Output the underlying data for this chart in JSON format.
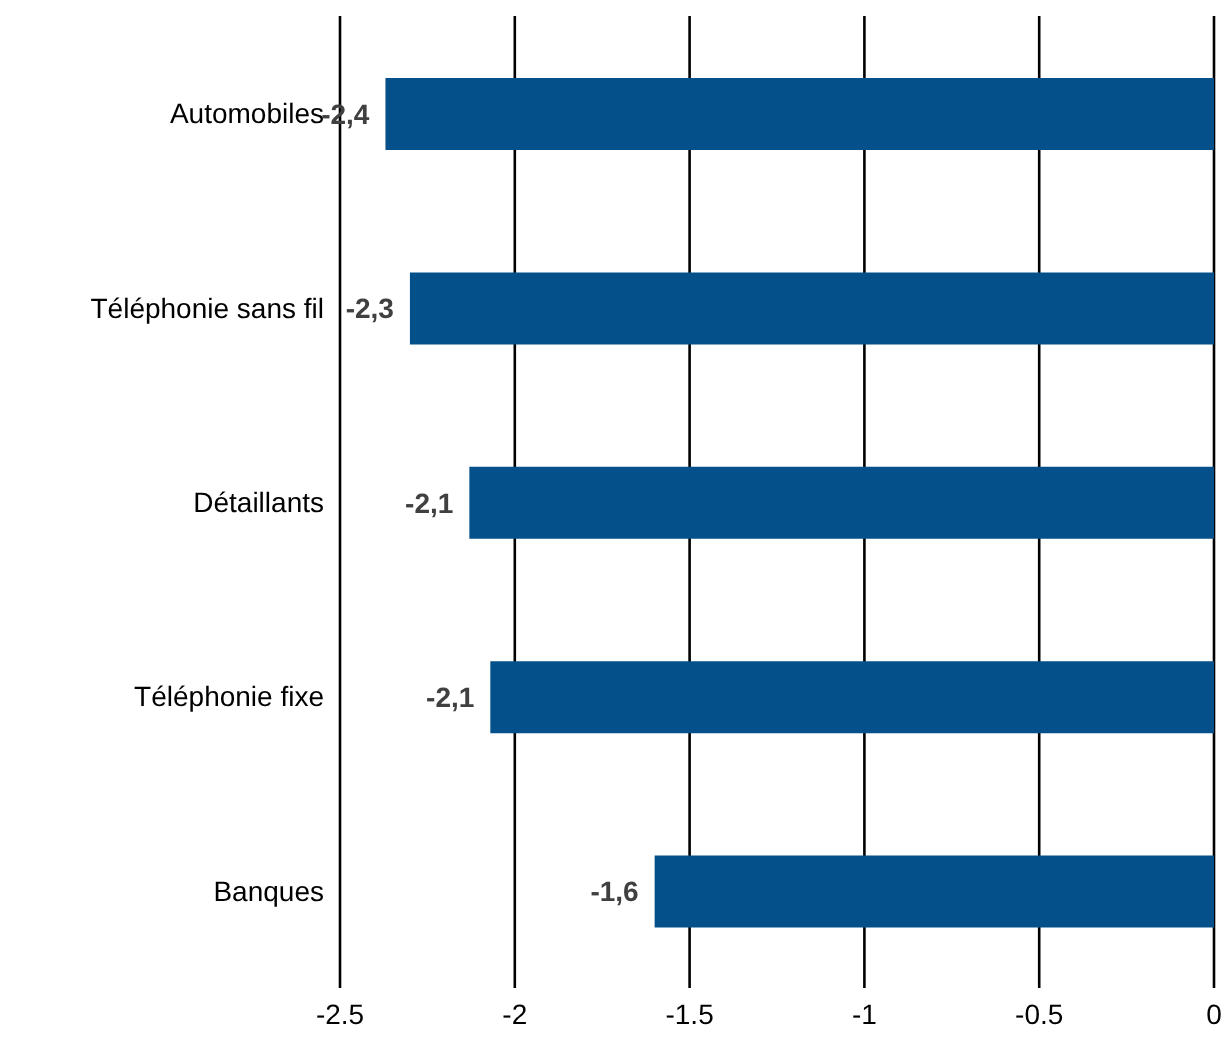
{
  "chart_data": {
    "type": "bar",
    "orientation": "horizontal",
    "categories": [
      "Automobiles",
      "Téléphonie sans fil",
      "Détaillants",
      "Téléphonie fixe",
      "Banques"
    ],
    "values": [
      -2.37,
      -2.3,
      -2.13,
      -2.07,
      -1.6
    ],
    "value_labels": [
      "-2,4",
      "-2,3",
      "-2,1",
      "-2,1",
      "-1,6"
    ],
    "color": "#03508a",
    "xlim": [
      -2.5,
      0
    ],
    "xticks": [
      -2.5,
      -2,
      -1.5,
      -1,
      -0.5,
      0
    ],
    "grid": "x"
  }
}
